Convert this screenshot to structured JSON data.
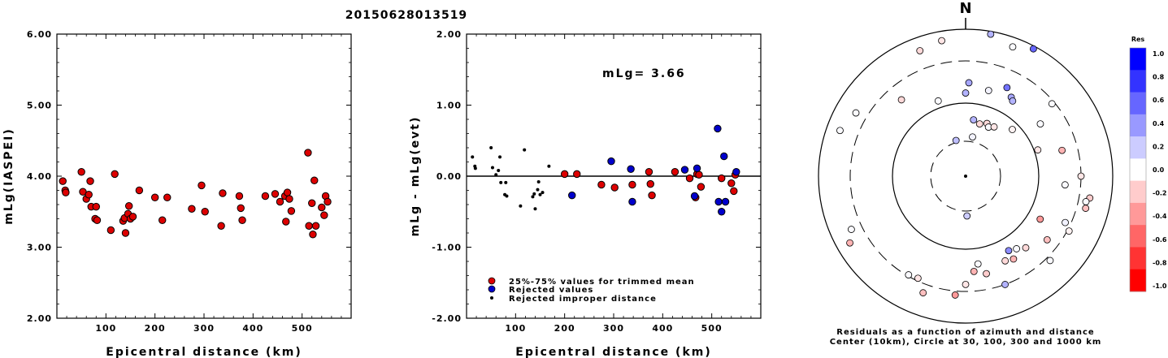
{
  "page_title": "20150628013519",
  "chart_data": [
    {
      "type": "scatter",
      "title": "",
      "xlabel": "Epicentral distance (km)",
      "ylabel": "mLg(IASPEI)",
      "xlim": [
        0,
        600
      ],
      "ylim": [
        2.0,
        6.0
      ],
      "x_ticks": [
        "100",
        "200",
        "300",
        "400",
        "500"
      ],
      "y_ticks": [
        "2.00",
        "3.00",
        "4.00",
        "5.00",
        "6.00"
      ],
      "color": "#dd0000",
      "points": [
        [
          12,
          3.93
        ],
        [
          17,
          3.8
        ],
        [
          18,
          3.77
        ],
        [
          50,
          4.06
        ],
        [
          53,
          3.78
        ],
        [
          60,
          3.68
        ],
        [
          65,
          3.74
        ],
        [
          68,
          3.93
        ],
        [
          70,
          3.57
        ],
        [
          78,
          3.4
        ],
        [
          80,
          3.57
        ],
        [
          82,
          3.38
        ],
        [
          110,
          3.24
        ],
        [
          118,
          4.03
        ],
        [
          135,
          3.37
        ],
        [
          138,
          3.41
        ],
        [
          140,
          3.2
        ],
        [
          145,
          3.47
        ],
        [
          147,
          3.58
        ],
        [
          150,
          3.4
        ],
        [
          155,
          3.43
        ],
        [
          168,
          3.8
        ],
        [
          200,
          3.7
        ],
        [
          215,
          3.38
        ],
        [
          225,
          3.7
        ],
        [
          275,
          3.54
        ],
        [
          295,
          3.87
        ],
        [
          302,
          3.5
        ],
        [
          335,
          3.3
        ],
        [
          338,
          3.76
        ],
        [
          372,
          3.72
        ],
        [
          375,
          3.55
        ],
        [
          378,
          3.38
        ],
        [
          425,
          3.72
        ],
        [
          445,
          3.75
        ],
        [
          455,
          3.64
        ],
        [
          465,
          3.72
        ],
        [
          467,
          3.36
        ],
        [
          470,
          3.77
        ],
        [
          474,
          3.68
        ],
        [
          478,
          3.51
        ],
        [
          512,
          4.33
        ],
        [
          514,
          3.3
        ],
        [
          520,
          3.62
        ],
        [
          522,
          3.18
        ],
        [
          525,
          3.94
        ],
        [
          528,
          3.3
        ],
        [
          540,
          3.56
        ],
        [
          545,
          3.45
        ],
        [
          548,
          3.72
        ],
        [
          552,
          3.64
        ]
      ]
    },
    {
      "type": "scatter",
      "title": "",
      "xlabel": "Epicentral distance (km)",
      "ylabel": "mLg - mLg(evt)",
      "xlim": [
        0,
        600
      ],
      "ylim": [
        -2.0,
        2.0
      ],
      "x_ticks": [
        "100",
        "200",
        "300",
        "400",
        "500"
      ],
      "y_ticks": [
        "-2.00",
        "-1.00",
        "0.00",
        "1.00",
        "2.00"
      ],
      "annotation": "mLg= 3.66",
      "legend": [
        {
          "label": "25%-75% values for trimmed mean",
          "color": "#dd0000"
        },
        {
          "label": "Rejected values",
          "color": "#0000cc"
        },
        {
          "label": "Rejected improper distance",
          "color": "#000000"
        }
      ],
      "series": [
        {
          "name": "25%-75% values for trimmed mean",
          "color": "#dd0000",
          "points": [
            [
              200,
              0.03
            ],
            [
              225,
              0.03
            ],
            [
              275,
              -0.12
            ],
            [
              302,
              -0.16
            ],
            [
              338,
              -0.12
            ],
            [
              372,
              0.06
            ],
            [
              375,
              -0.11
            ],
            [
              378,
              -0.27
            ],
            [
              425,
              0.06
            ],
            [
              455,
              -0.03
            ],
            [
              467,
              -0.3
            ],
            [
              470,
              0.03
            ],
            [
              474,
              0.02
            ],
            [
              478,
              -0.15
            ],
            [
              520,
              -0.03
            ],
            [
              540,
              -0.1
            ],
            [
              545,
              -0.21
            ],
            [
              548,
              0.02
            ]
          ]
        },
        {
          "name": "Rejected values",
          "color": "#0000cc",
          "points": [
            [
              215,
              -0.27
            ],
            [
              295,
              0.21
            ],
            [
              335,
              0.1
            ],
            [
              338,
              -0.36
            ],
            [
              445,
              0.09
            ],
            [
              465,
              -0.28
            ],
            [
              470,
              0.11
            ],
            [
              512,
              0.67
            ],
            [
              514,
              -0.36
            ],
            [
              520,
              -0.5
            ],
            [
              525,
              0.28
            ],
            [
              528,
              -0.36
            ],
            [
              550,
              0.06
            ]
          ]
        },
        {
          "name": "Rejected improper distance",
          "color": "#000000",
          "points": [
            [
              12,
              0.27
            ],
            [
              17,
              0.14
            ],
            [
              18,
              0.11
            ],
            [
              50,
              0.4
            ],
            [
              53,
              0.12
            ],
            [
              60,
              0.02
            ],
            [
              65,
              0.08
            ],
            [
              68,
              0.27
            ],
            [
              70,
              -0.09
            ],
            [
              78,
              -0.26
            ],
            [
              80,
              -0.09
            ],
            [
              82,
              -0.28
            ],
            [
              110,
              -0.42
            ],
            [
              118,
              0.37
            ],
            [
              135,
              -0.29
            ],
            [
              138,
              -0.25
            ],
            [
              140,
              -0.46
            ],
            [
              145,
              -0.19
            ],
            [
              147,
              -0.08
            ],
            [
              150,
              -0.26
            ],
            [
              155,
              -0.23
            ],
            [
              168,
              0.14
            ]
          ]
        }
      ]
    },
    {
      "type": "scatter",
      "title": "N",
      "subtitle_lines": [
        "Residuals as a function of azimuth and distance",
        "Center (10km), Circle at 30, 100, 300 and 1000 km"
      ],
      "colorbar": {
        "label": "Res",
        "ticks": [
          "1.0",
          "0.8",
          "0.6",
          "0.4",
          "0.2",
          "0.0",
          "-0.2",
          "-0.4",
          "-0.6",
          "-0.8",
          "-1.0"
        ],
        "colors": [
          "#0000ff",
          "#3333ff",
          "#6666ff",
          "#9999ff",
          "#ccccff",
          "#ffffff",
          "#ffcccc",
          "#ff9999",
          "#ff6666",
          "#ff3333",
          "#ff0000"
        ]
      },
      "circles_km": [
        10,
        30,
        100,
        300,
        1000
      ],
      "points": [
        {
          "az": 2,
          "dist": 170,
          "res": 0.35
        },
        {
          "az": 15,
          "dist": 150,
          "res": 0.05
        },
        {
          "az": 25,
          "dist": 190,
          "res": 0.55
        },
        {
          "az": 30,
          "dist": 160,
          "res": 0.35
        },
        {
          "az": 32,
          "dist": 150,
          "res": 0.3
        },
        {
          "az": 340,
          "dist": 120,
          "res": 0.02
        },
        {
          "az": 320,
          "dist": 200,
          "res": -0.15
        },
        {
          "az": 300,
          "dist": 460,
          "res": 0.02
        },
        {
          "az": 50,
          "dist": 280,
          "res": 0.02
        },
        {
          "az": 360,
          "dist": 130,
          "res": 0.3
        },
        {
          "az": 10,
          "dist": 35,
          "res": 0.05
        },
        {
          "az": 345,
          "dist": 32,
          "res": 0.25
        },
        {
          "az": 8,
          "dist": 60,
          "res": 0.3
        },
        {
          "az": 15,
          "dist": 55,
          "res": -0.15
        },
        {
          "az": 22,
          "dist": 60,
          "res": -0.15
        },
        {
          "az": 25,
          "dist": 55,
          "res": 0.02
        },
        {
          "az": 30,
          "dist": 60,
          "res": -0.1
        },
        {
          "az": 45,
          "dist": 80,
          "res": -0.05
        },
        {
          "az": 75,
          "dist": 200,
          "res": -0.3
        },
        {
          "az": 70,
          "dist": 110,
          "res": -0.1
        },
        {
          "az": 90,
          "dist": 300,
          "res": -0.1
        },
        {
          "az": 95,
          "dist": 200,
          "res": 0.02
        },
        {
          "az": 100,
          "dist": 450,
          "res": -0.2
        },
        {
          "az": 102,
          "dist": 400,
          "res": 0.02
        },
        {
          "az": 105,
          "dist": 420,
          "res": -0.25
        },
        {
          "az": 115,
          "dist": 260,
          "res": 0.05
        },
        {
          "az": 118,
          "dist": 320,
          "res": -0.05
        },
        {
          "az": 120,
          "dist": 140,
          "res": -0.4
        },
        {
          "az": 128,
          "dist": 220,
          "res": -0.25
        },
        {
          "az": 135,
          "dist": 350,
          "res": 0.02
        },
        {
          "az": 140,
          "dist": 170,
          "res": -0.15
        },
        {
          "az": 145,
          "dist": 150,
          "res": 0.02
        },
        {
          "az": 150,
          "dist": 140,
          "res": 0.45
        },
        {
          "az": 150,
          "dist": 180,
          "res": -0.3
        },
        {
          "az": 155,
          "dist": 170,
          "res": -0.15
        },
        {
          "az": 160,
          "dist": 300,
          "res": 0.3
        },
        {
          "az": 168,
          "dist": 200,
          "res": -0.2
        },
        {
          "az": 172,
          "dist": 150,
          "res": 0.02
        },
        {
          "az": 175,
          "dist": 180,
          "res": -0.3
        },
        {
          "az": 180,
          "dist": 250,
          "res": -0.1
        },
        {
          "az": 185,
          "dist": 350,
          "res": -0.4
        },
        {
          "az": 178,
          "dist": 35,
          "res": 0.2
        },
        {
          "az": 200,
          "dist": 420,
          "res": -0.25
        },
        {
          "az": 205,
          "dist": 280,
          "res": -0.1
        },
        {
          "az": 210,
          "dist": 290,
          "res": 0.02
        },
        {
          "az": 240,
          "dist": 600,
          "res": -0.3
        },
        {
          "az": 245,
          "dist": 450,
          "res": 0.02
        },
        {
          "az": 290,
          "dist": 600,
          "res": 0.02
        },
        {
          "az": 340,
          "dist": 600,
          "res": -0.15
        },
        {
          "az": 20,
          "dist": 700,
          "res": 0.02
        },
        {
          "az": 28,
          "dist": 900,
          "res": 0.6
        },
        {
          "az": 10,
          "dist": 900,
          "res": 0.3
        },
        {
          "az": 55,
          "dist": 160,
          "res": 0.02
        },
        {
          "az": 350,
          "dist": 700,
          "res": -0.1
        }
      ]
    }
  ]
}
